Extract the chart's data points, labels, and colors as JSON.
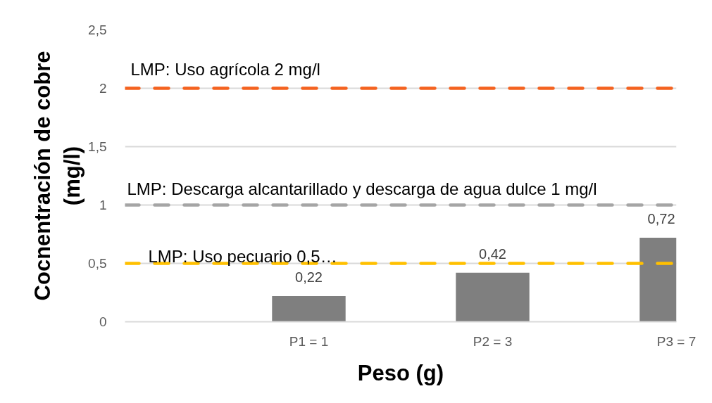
{
  "chart_data": {
    "type": "bar",
    "xlabel": "Peso (g)",
    "ylabel": "Cocnentración de cobre\n(mg/l)",
    "categories": [
      null,
      "P1 = 1",
      "P2 = 3",
      "P3 = 7"
    ],
    "values": [
      null,
      0.22,
      0.42,
      0.72
    ],
    "color": "#7f7f7f",
    "value_labels": [
      null,
      "0,22",
      "0,42",
      "0,72"
    ],
    "ylim": [
      0,
      2.5
    ],
    "yticks": [
      0,
      {
        "value": 0.5,
        "label": "0,5"
      },
      1,
      {
        "value": 1.5,
        "label": "1,5"
      },
      2,
      {
        "value": 2.5,
        "label": "2,5"
      }
    ],
    "grid": "y",
    "ref_lines": [
      {
        "axis": "y",
        "value": 2,
        "label": "LMP: Uso agrícola  2 mg/l",
        "color": "#f4621f",
        "line_style": "dashed"
      },
      {
        "axis": "y",
        "value": 1,
        "label": "LMP: Descarga alcantarillado y descarga de agua dulce  1 mg/l",
        "color": "#a5a5a5",
        "line_style": "dashed"
      },
      {
        "axis": "y",
        "value": 0.5,
        "label": "LMP: Uso pecuario 0,5…",
        "color": "#ffc000",
        "line_style": "dashed"
      }
    ]
  }
}
